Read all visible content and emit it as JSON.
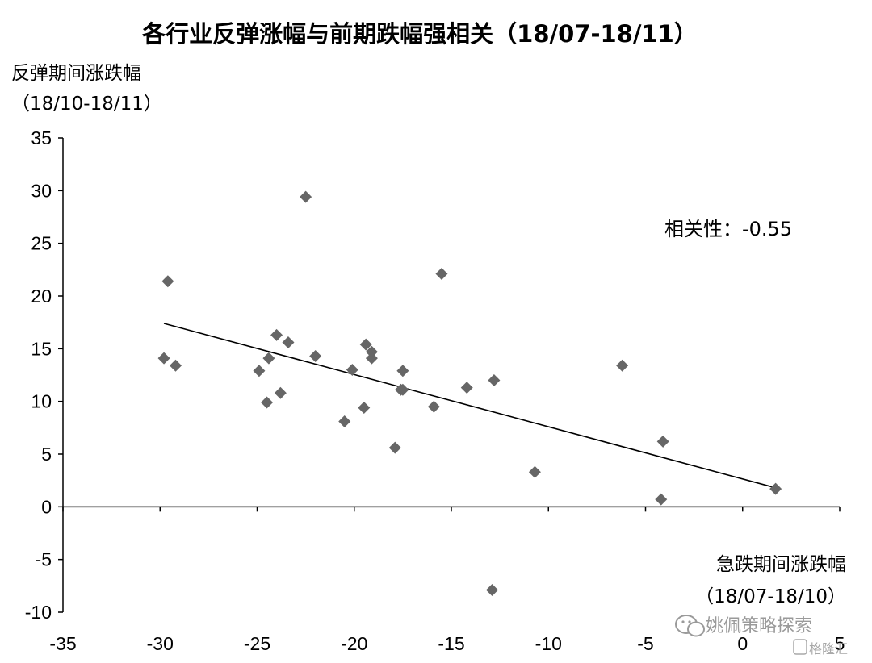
{
  "chart_data": {
    "type": "scatter",
    "title": "各行业反弹涨幅与前期跌幅强相关（18/07-18/11）",
    "ylabel_line1": "反弹期间涨跌幅",
    "ylabel_line2": "（18/10-18/11）",
    "xlabel_line1": "急跌期间涨跌幅",
    "xlabel_line2": "（18/07-18/10）",
    "annotation": "相关性：-0.55",
    "xlim": [
      -35,
      5
    ],
    "ylim": [
      -10,
      35
    ],
    "x_ticks": [
      "-35",
      "-30",
      "-25",
      "-20",
      "-15",
      "-10",
      "-5",
      "0",
      "5"
    ],
    "y_ticks": [
      "35",
      "30",
      "25",
      "20",
      "15",
      "10",
      "5",
      "0",
      "-5",
      "-10"
    ],
    "marker": "diamond",
    "marker_color": "#666666",
    "trendline": {
      "x": [
        -29.8,
        1.7
      ],
      "y": [
        17.4,
        1.8
      ]
    },
    "points": [
      {
        "x": -29.6,
        "y": 21.4
      },
      {
        "x": -29.8,
        "y": 14.1
      },
      {
        "x": -29.2,
        "y": 13.4
      },
      {
        "x": -22.5,
        "y": 29.4
      },
      {
        "x": -24.9,
        "y": 12.9
      },
      {
        "x": -24.4,
        "y": 14.1
      },
      {
        "x": -24.5,
        "y": 9.9
      },
      {
        "x": -23.8,
        "y": 10.8
      },
      {
        "x": -24.0,
        "y": 16.3
      },
      {
        "x": -23.4,
        "y": 15.6
      },
      {
        "x": -22.0,
        "y": 14.3
      },
      {
        "x": -20.5,
        "y": 8.1
      },
      {
        "x": -20.1,
        "y": 13.0
      },
      {
        "x": -19.4,
        "y": 15.4
      },
      {
        "x": -19.1,
        "y": 14.7
      },
      {
        "x": -19.1,
        "y": 14.1
      },
      {
        "x": -19.5,
        "y": 9.4
      },
      {
        "x": -17.9,
        "y": 5.6
      },
      {
        "x": -17.5,
        "y": 12.9
      },
      {
        "x": -17.6,
        "y": 11.1
      },
      {
        "x": -17.5,
        "y": 11.1
      },
      {
        "x": -15.9,
        "y": 9.5
      },
      {
        "x": -15.5,
        "y": 22.1
      },
      {
        "x": -14.2,
        "y": 11.3
      },
      {
        "x": -12.8,
        "y": 12.0
      },
      {
        "x": -12.9,
        "y": -7.9
      },
      {
        "x": -10.7,
        "y": 3.3
      },
      {
        "x": -6.2,
        "y": 13.4
      },
      {
        "x": -4.1,
        "y": 6.2
      },
      {
        "x": -4.2,
        "y": 0.7
      },
      {
        "x": 1.7,
        "y": 1.7
      }
    ],
    "watermark_text": "姚佩策略探索",
    "corner_logo_text": "格隆汇"
  }
}
